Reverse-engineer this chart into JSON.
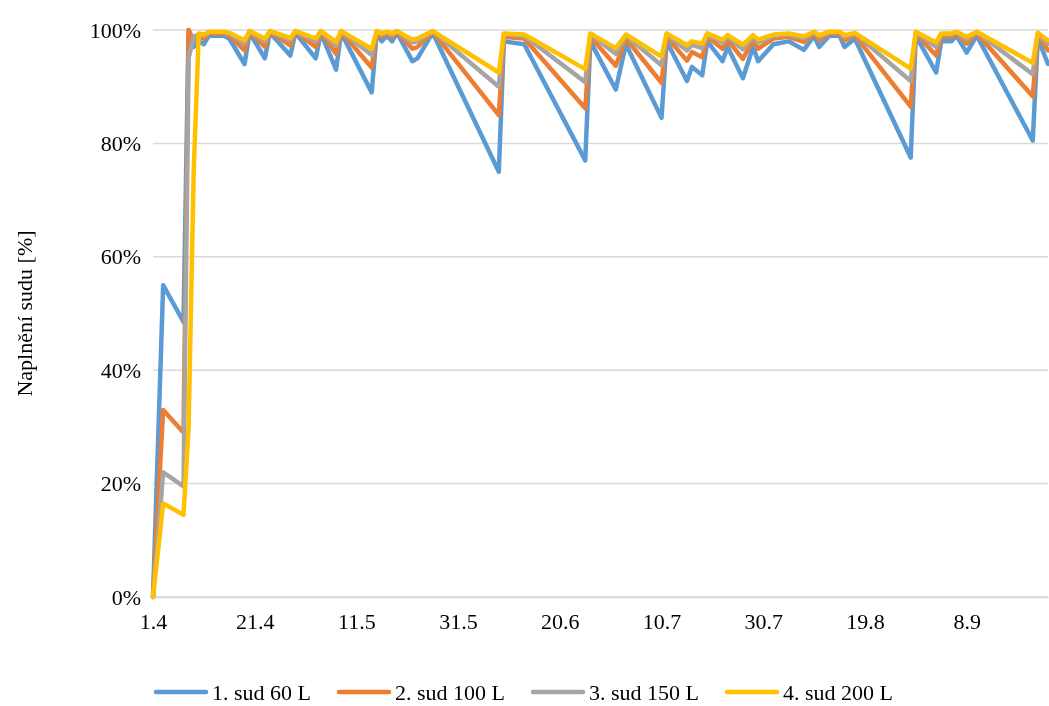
{
  "chart_data": {
    "type": "line",
    "ylabel": "Naplnění sudu [%]",
    "x": [
      "--04-01",
      "--04-03",
      "--04-07",
      "--04-08",
      "--04-09",
      "--04-10",
      "--04-11",
      "--04-12",
      "--04-15",
      "--04-16",
      "--04-19",
      "--04-20",
      "--04-23",
      "--04-24",
      "--04-28",
      "--04-29",
      "--05-03",
      "--05-04",
      "--05-07",
      "--05-08",
      "--05-14",
      "--05-15",
      "--05-16",
      "--05-17",
      "--05-18",
      "--05-19",
      "--05-22",
      "--05-23",
      "--05-26",
      "--06-08",
      "--06-09",
      "--06-13",
      "--06-25",
      "--06-26",
      "--07-01",
      "--07-03",
      "--07-10",
      "--07-11",
      "--07-15",
      "--07-16",
      "--07-18",
      "--07-19",
      "--07-22",
      "--07-23",
      "--07-26",
      "--07-28",
      "--07-29",
      "--08-01",
      "--08-04",
      "--08-07",
      "--08-09",
      "--08-10",
      "--08-12",
      "--08-14",
      "--08-15",
      "--08-17",
      "--08-28",
      "--08-29",
      "--09-02",
      "--09-03",
      "--09-05",
      "--09-06",
      "--09-08",
      "--09-10",
      "--09-21",
      "--09-22",
      "--09-24"
    ],
    "series": [
      {
        "name": "1. sud 60 L",
        "color": "#5b9bd5",
        "values": [
          0,
          55,
          48.5,
          100,
          97,
          98,
          97.5,
          99,
          99,
          98.5,
          94,
          99.5,
          95,
          99.5,
          95.5,
          99.5,
          95,
          99.5,
          93,
          99.5,
          89,
          99.5,
          98,
          99,
          98,
          99.5,
          94.5,
          95,
          99.5,
          75,
          98,
          97.5,
          77,
          98,
          89.5,
          97.5,
          84.5,
          98,
          91,
          93.5,
          92,
          98,
          94.5,
          97,
          91.5,
          97,
          94.5,
          97.5,
          98,
          96.5,
          99,
          97,
          99,
          99,
          97,
          98.5,
          77.5,
          99,
          92.5,
          98,
          98,
          99,
          96,
          99,
          80.5,
          98.5,
          94
        ]
      },
      {
        "name": "2. sud 100 L",
        "color": "#ed7d31",
        "values": [
          0,
          33,
          29,
          100,
          98.2,
          98.8,
          98.5,
          99.4,
          99.4,
          99.1,
          96.4,
          99.7,
          97,
          99.7,
          97.3,
          99.7,
          97,
          99.7,
          95.8,
          99.7,
          93.4,
          99.7,
          98.8,
          99.4,
          98.8,
          99.7,
          96.7,
          97,
          99.7,
          85,
          98.8,
          98.5,
          86.2,
          98.8,
          93.7,
          98.5,
          90.7,
          98.8,
          94.6,
          96.1,
          95.2,
          98.8,
          96.7,
          98.2,
          94.9,
          98.2,
          96.7,
          98.5,
          98.8,
          97.9,
          99.4,
          98.2,
          99.4,
          99.4,
          98.2,
          99.1,
          86.5,
          99.4,
          95.5,
          98.8,
          98.8,
          99.4,
          97.6,
          99.4,
          88.3,
          99.1,
          96.4
        ]
      },
      {
        "name": "3. sud 150 L",
        "color": "#a5a5a5",
        "values": [
          0,
          22,
          19.5,
          95,
          98.8,
          99.2,
          99,
          99.6,
          99.6,
          99.4,
          97.6,
          99.8,
          98,
          99.8,
          98.2,
          99.8,
          98,
          99.8,
          97.2,
          99.8,
          95.6,
          99.8,
          99.2,
          99.6,
          99.2,
          99.8,
          97.8,
          98,
          99.8,
          90,
          99.2,
          99,
          90.8,
          99.2,
          95.8,
          99,
          93.8,
          99.2,
          96.4,
          97.4,
          96.8,
          99.2,
          97.8,
          98.8,
          96.6,
          98.8,
          97.8,
          99,
          99.2,
          98.6,
          99.6,
          98.8,
          99.6,
          99.6,
          98.8,
          99.4,
          91,
          99.6,
          97,
          99.2,
          99.2,
          99.6,
          98.4,
          99.6,
          92.2,
          99.4,
          97.6
        ]
      },
      {
        "name": "4. sud 200 L",
        "color": "#ffc000",
        "values": [
          0,
          16.5,
          14.5,
          30,
          75,
          99.4,
          99.2,
          99.7,
          99.7,
          99.5,
          98.2,
          99.8,
          98.5,
          99.8,
          98.6,
          99.8,
          98.5,
          99.8,
          97.9,
          99.8,
          96.7,
          99.8,
          99.4,
          99.7,
          99.4,
          99.8,
          98.3,
          98.5,
          99.8,
          92.5,
          99.4,
          99.2,
          93.1,
          99.4,
          96.8,
          99.2,
          95.3,
          99.4,
          97.3,
          98,
          97.6,
          99.4,
          98.3,
          99.1,
          97.4,
          99.1,
          98.3,
          99.2,
          99.4,
          98.9,
          99.7,
          99.1,
          99.7,
          99.7,
          99.1,
          99.5,
          93.2,
          99.7,
          97.8,
          99.4,
          99.4,
          99.7,
          98.8,
          99.7,
          94.2,
          99.5,
          98.2
        ]
      }
    ],
    "xlim": [
      "--04-01",
      "--09-24"
    ],
    "xticks": [
      {
        "value": "--04-01",
        "label": "1.4"
      },
      {
        "value": "--04-21",
        "label": "21.4"
      },
      {
        "value": "--05-11",
        "label": "11.5"
      },
      {
        "value": "--05-31",
        "label": "31.5"
      },
      {
        "value": "--06-20",
        "label": "20.6"
      },
      {
        "value": "--07-10",
        "label": "10.7"
      },
      {
        "value": "--07-30",
        "label": "30.7"
      },
      {
        "value": "--08-19",
        "label": "19.8"
      },
      {
        "value": "--09-08",
        "label": "8.9"
      }
    ],
    "ylim": [
      0,
      100
    ],
    "yticks": [
      {
        "value": 0,
        "label": "0%"
      },
      {
        "value": 20,
        "label": "20%"
      },
      {
        "value": 40,
        "label": "40%"
      },
      {
        "value": 60,
        "label": "60%"
      },
      {
        "value": 80,
        "label": "80%"
      },
      {
        "value": 100,
        "label": "100%"
      }
    ],
    "grid": "y",
    "legend": "bottom",
    "marker": "none",
    "line_style": "solid"
  }
}
